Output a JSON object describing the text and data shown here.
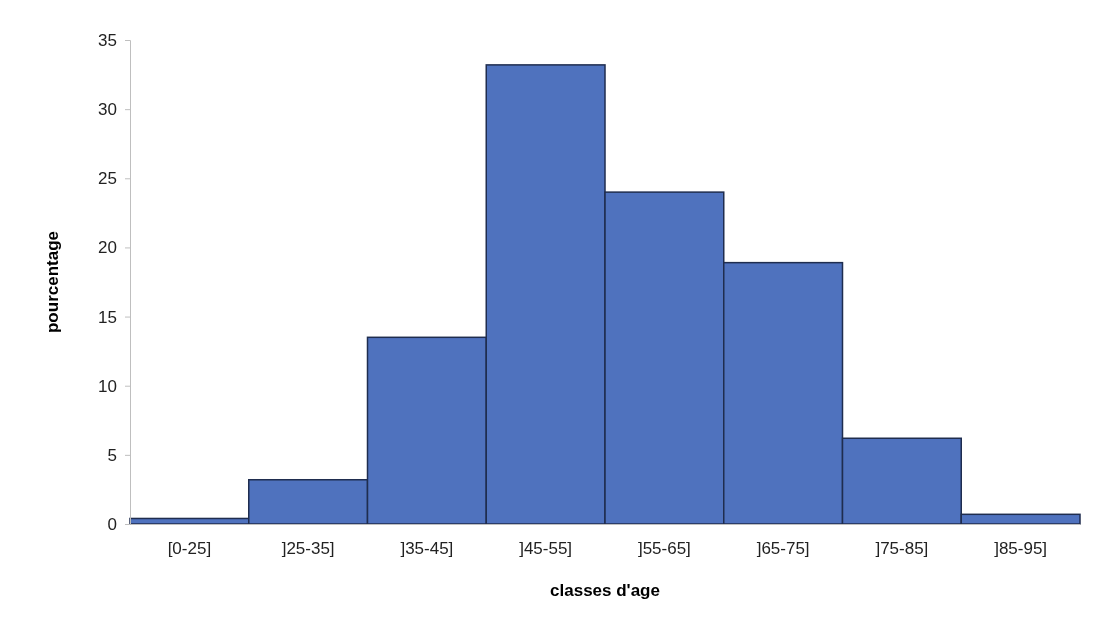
{
  "chart_data": {
    "type": "bar",
    "xlabel": "classes d'age",
    "ylabel": "pourcentage",
    "categories": [
      "[0-25]",
      "]25-35]",
      "]35-45]",
      "]45-55]",
      "]55-65]",
      "]65-75]",
      "]75-85]",
      "]85-95]"
    ],
    "values": [
      0.4,
      3.2,
      13.5,
      33.2,
      24.0,
      18.9,
      6.2,
      0.7
    ],
    "color": "#4f72be",
    "ylim": [
      0,
      35
    ],
    "yticks": [
      0,
      5,
      10,
      15,
      20,
      25,
      30,
      35
    ],
    "grid": false
  }
}
